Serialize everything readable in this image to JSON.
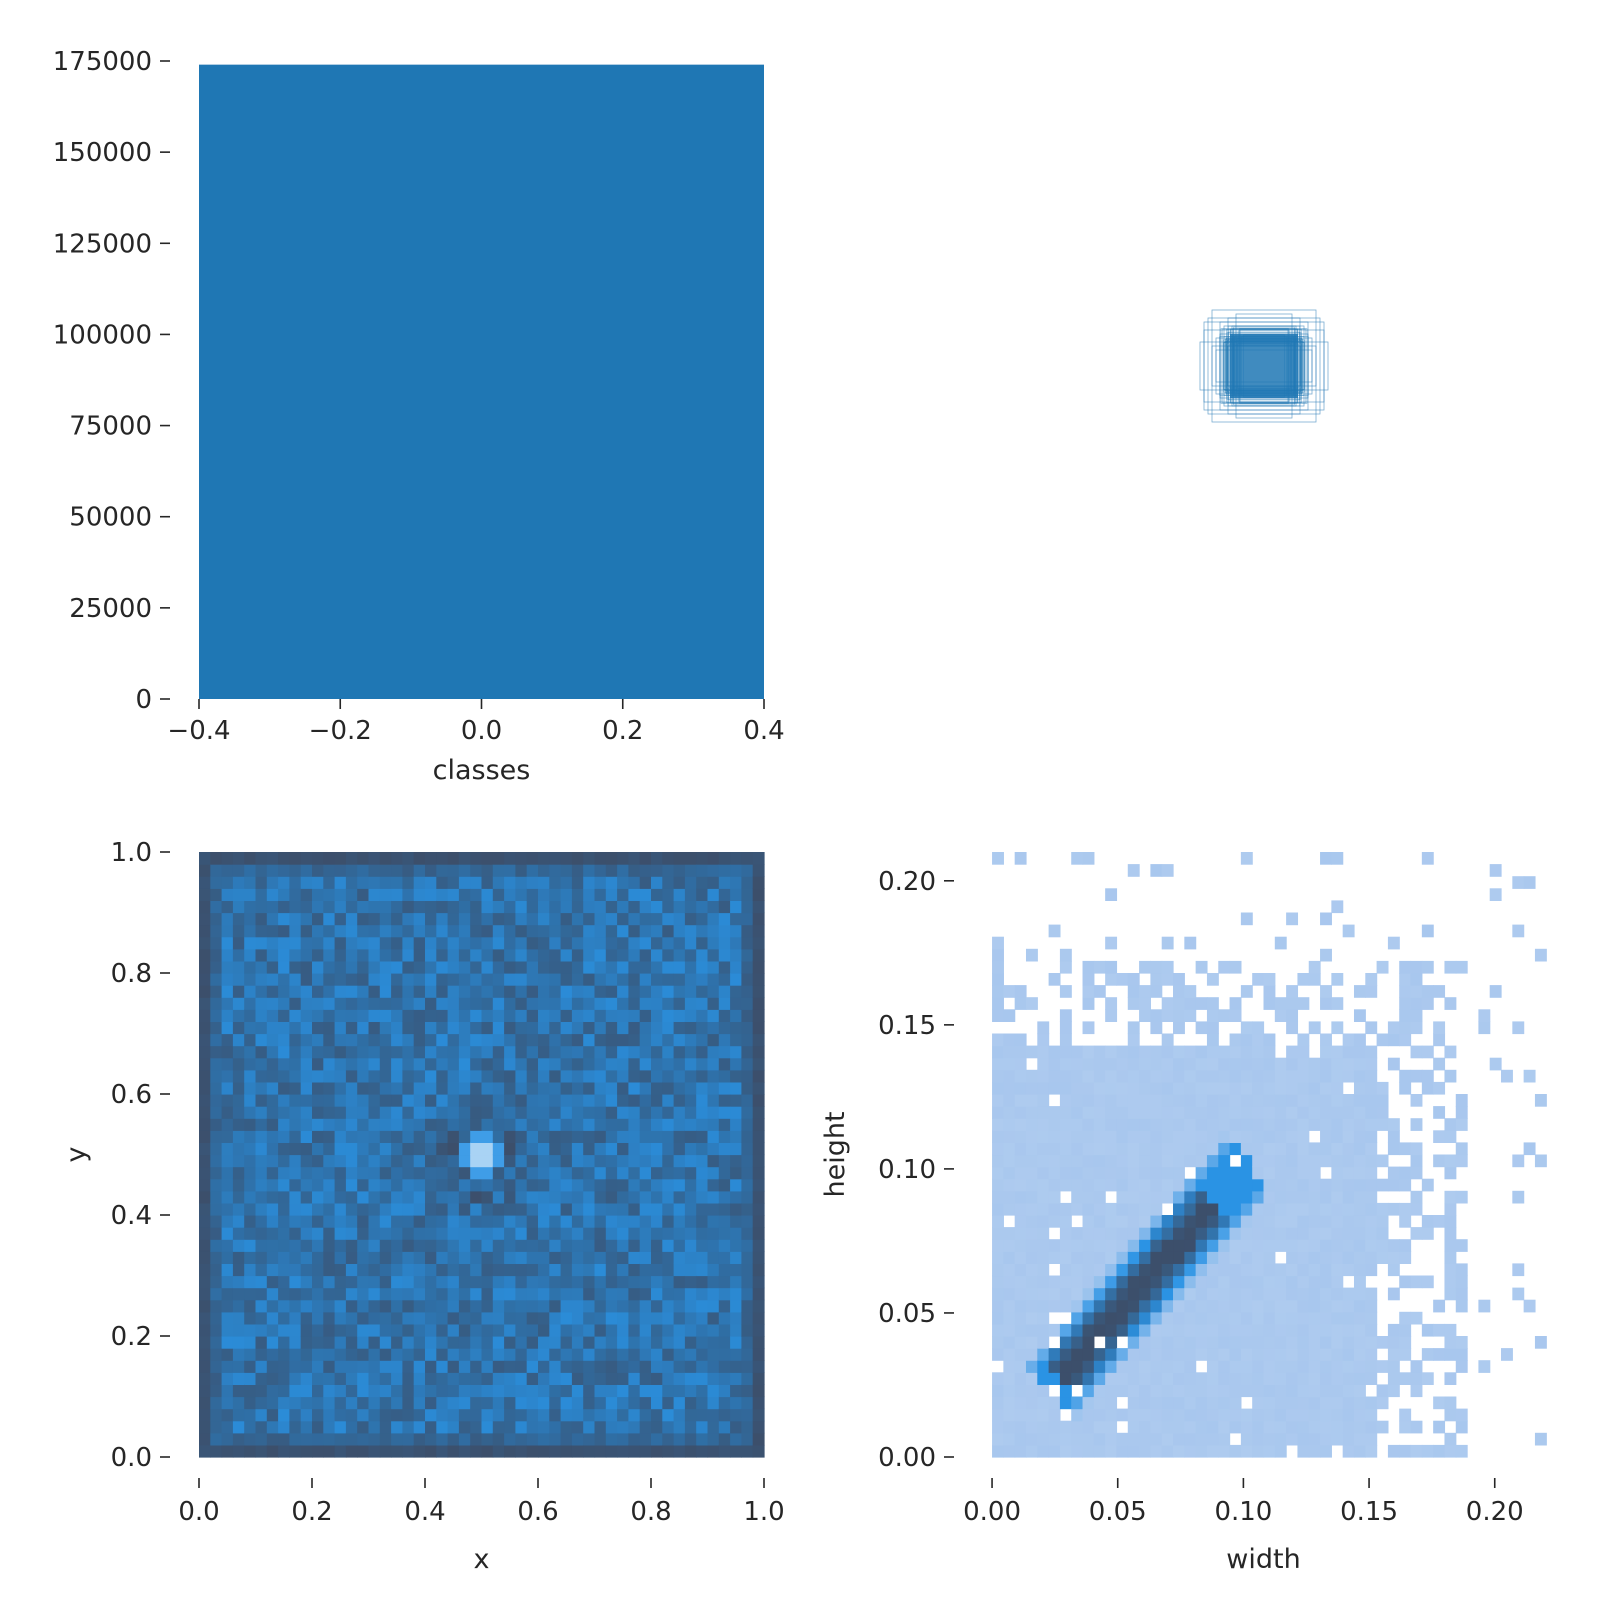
{
  "chart_data": [
    {
      "type": "bar",
      "panel": "top-left",
      "categories": [
        0
      ],
      "values": [
        174000
      ],
      "bar_width": 0.8,
      "color": "#1f77b4",
      "xlabel": "classes",
      "ylabel": "",
      "xlim": [
        -0.4,
        0.4
      ],
      "ylim": [
        0,
        174000
      ],
      "xticks": [
        -0.4,
        -0.2,
        0.0,
        0.2,
        0.4
      ],
      "xtick_labels": [
        "−0.4",
        "−0.2",
        "0.0",
        "0.2",
        "0.4"
      ],
      "yticks": [
        0,
        25000,
        50000,
        75000,
        100000,
        125000,
        150000,
        175000
      ],
      "ytick_labels": [
        "0",
        "25000",
        "50000",
        "75000",
        "100000",
        "125000",
        "150000",
        "175000"
      ],
      "grid": false
    },
    {
      "type": "boxes",
      "panel": "top-right",
      "description_units": "normalized image coordinates (center 0.5, 0.5)",
      "boxes": [
        {
          "w": 0.1,
          "h": 0.06
        },
        {
          "w": 0.13,
          "h": 0.05
        },
        {
          "w": 0.08,
          "h": 0.08
        },
        {
          "w": 0.15,
          "h": 0.09
        },
        {
          "w": 0.11,
          "h": 0.11
        },
        {
          "w": 0.09,
          "h": 0.05
        },
        {
          "w": 0.12,
          "h": 0.07
        },
        {
          "w": 0.07,
          "h": 0.13
        },
        {
          "w": 0.14,
          "h": 0.12
        },
        {
          "w": 0.1,
          "h": 0.1
        },
        {
          "w": 0.16,
          "h": 0.06
        },
        {
          "w": 0.06,
          "h": 0.09
        },
        {
          "w": 0.13,
          "h": 0.14
        },
        {
          "w": 0.11,
          "h": 0.08
        },
        {
          "w": 0.09,
          "h": 0.12
        },
        {
          "w": 0.12,
          "h": 0.04
        },
        {
          "w": 0.08,
          "h": 0.1
        },
        {
          "w": 0.15,
          "h": 0.11
        }
      ],
      "color": "#1f77b4",
      "grid": false
    },
    {
      "type": "heatmap",
      "panel": "bottom-left",
      "xlabel": "x",
      "ylabel": "y",
      "xlim": [
        0,
        1
      ],
      "ylim": [
        0,
        1
      ],
      "xticks": [
        0.0,
        0.2,
        0.4,
        0.6,
        0.8,
        1.0
      ],
      "xtick_labels": [
        "0.0",
        "0.2",
        "0.4",
        "0.6",
        "0.8",
        "1.0"
      ],
      "yticks": [
        0.0,
        0.2,
        0.4,
        0.6,
        0.8,
        1.0
      ],
      "ytick_labels": [
        "0.0",
        "0.2",
        "0.4",
        "0.6",
        "0.8",
        "1.0"
      ],
      "bins": 50,
      "pattern": "uniform density over the image, darker border band, darker ring around center, bright hotspot at (0.5, 0.5)",
      "colors": {
        "low": "#3c4f6b",
        "mid": "#2f6fa6",
        "high": "#2a93e4",
        "hotspot": "#ffffff"
      },
      "grid": false
    },
    {
      "type": "heatmap",
      "panel": "bottom-right",
      "xlabel": "width",
      "ylabel": "height",
      "xlim": [
        -0.004,
        0.22
      ],
      "ylim": [
        0,
        0.21
      ],
      "xticks": [
        0.0,
        0.05,
        0.1,
        0.15,
        0.2
      ],
      "xtick_labels": [
        "0.00",
        "0.05",
        "0.10",
        "0.15",
        "0.20"
      ],
      "yticks": [
        0.0,
        0.05,
        0.1,
        0.15,
        0.2
      ],
      "ytick_labels": [
        "0.00",
        "0.05",
        "0.10",
        "0.15",
        "0.20"
      ],
      "bins": 50,
      "pattern": "dense diagonal core from (0.03, 0.03) to (0.09, 0.09), sparse cells up to width 0.22 and height 0.21",
      "colors": {
        "sparse": "#aecbef",
        "mid": "#2a93e4",
        "dense": "#3c4f6b"
      },
      "grid": false
    }
  ]
}
